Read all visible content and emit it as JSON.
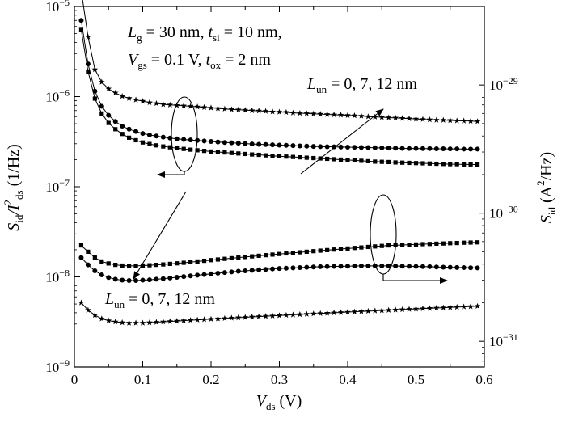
{
  "chart_data": {
    "type": "line",
    "xlabel": {
      "main": "V",
      "sub": "ds",
      "unit": " (V)"
    },
    "ylabel_left": {
      "main": "S",
      "sub1": "id",
      "mid": "/I",
      "sup": "2",
      "sub2": "ds",
      "unit": "(1/Hz)"
    },
    "ylabel_right": {
      "main": "S",
      "sub": "id",
      "unit": "(A",
      "sup": "2",
      "unit2": "/Hz)"
    },
    "x_ticks": [
      "0",
      "0.1",
      "0.2",
      "0.3",
      "0.4",
      "0.5",
      "0.6"
    ],
    "xlim": [
      0,
      0.6
    ],
    "left_ylim": [
      1e-09,
      1e-05
    ],
    "left_y_scale": "log",
    "left_ticks": [
      {
        "value": 1e-09,
        "base": "10",
        "exp": "−9"
      },
      {
        "value": 1e-08,
        "base": "10",
        "exp": "−8"
      },
      {
        "value": 1e-07,
        "base": "10",
        "exp": "−7"
      },
      {
        "value": 1e-06,
        "base": "10",
        "exp": "−6"
      },
      {
        "value": 1e-05,
        "base": "10",
        "exp": "−5"
      }
    ],
    "right_ylim": [
      6.3e-32,
      4.1e-29
    ],
    "right_y_scale": "log",
    "right_ticks": [
      {
        "value": 1e-31,
        "base": "10",
        "exp": "−31"
      },
      {
        "value": 1e-30,
        "base": "10",
        "exp": "−30"
      },
      {
        "value": 1e-29,
        "base": "10",
        "exp": "−29"
      }
    ],
    "x": [
      0.01,
      0.02,
      0.03,
      0.04,
      0.05,
      0.06,
      0.07,
      0.08,
      0.09,
      0.1,
      0.11,
      0.12,
      0.13,
      0.14,
      0.15,
      0.16,
      0.17,
      0.18,
      0.19,
      0.2,
      0.21,
      0.22,
      0.23,
      0.24,
      0.25,
      0.26,
      0.27,
      0.28,
      0.29,
      0.3,
      0.31,
      0.32,
      0.33,
      0.34,
      0.35,
      0.36,
      0.37,
      0.38,
      0.39,
      0.4,
      0.41,
      0.42,
      0.43,
      0.44,
      0.45,
      0.46,
      0.47,
      0.48,
      0.49,
      0.5,
      0.51,
      0.52,
      0.53,
      0.54,
      0.55,
      0.56,
      0.57,
      0.58,
      0.59
    ],
    "series": [
      {
        "group": "normalized",
        "axis": "left",
        "marker": "star",
        "values": [
          1.5e-05,
          4.6e-06,
          2e-06,
          1.45e-06,
          1.22e-06,
          1.1e-06,
          1.01e-06,
          9.6e-07,
          9.2e-07,
          8.9e-07,
          8.6e-07,
          8.4e-07,
          8.2e-07,
          8.1e-07,
          8e-07,
          7.9e-07,
          7.8e-07,
          7.7e-07,
          7.6e-07,
          7.5e-07,
          7.4e-07,
          7.3e-07,
          7.2e-07,
          7.15e-07,
          7.1e-07,
          7e-07,
          6.95e-07,
          6.9e-07,
          6.8e-07,
          6.75e-07,
          6.7e-07,
          6.6e-07,
          6.55e-07,
          6.5e-07,
          6.45e-07,
          6.4e-07,
          6.35e-07,
          6.3e-07,
          6.25e-07,
          6.2e-07,
          6.15e-07,
          6.1e-07,
          6e-07,
          5.95e-07,
          5.9e-07,
          5.85e-07,
          5.8e-07,
          5.75e-07,
          5.7e-07,
          5.65e-07,
          5.6e-07,
          5.55e-07,
          5.5e-07,
          5.48e-07,
          5.45e-07,
          5.4e-07,
          5.38e-07,
          5.35e-07,
          5.3e-07
        ]
      },
      {
        "group": "normalized",
        "axis": "left",
        "marker": "circle",
        "values": [
          7e-06,
          2.3e-06,
          1.15e-06,
          7.8e-07,
          6.2e-07,
          5.3e-07,
          4.7e-07,
          4.35e-07,
          4.1e-07,
          3.9e-07,
          3.75e-07,
          3.65e-07,
          3.55e-07,
          3.47e-07,
          3.4e-07,
          3.35e-07,
          3.3e-07,
          3.26e-07,
          3.22e-07,
          3.18e-07,
          3.14e-07,
          3.1e-07,
          3.07e-07,
          3.04e-07,
          3.01e-07,
          2.98e-07,
          2.96e-07,
          2.94e-07,
          2.92e-07,
          2.9e-07,
          2.88e-07,
          2.86e-07,
          2.84e-07,
          2.82e-07,
          2.8e-07,
          2.79e-07,
          2.78e-07,
          2.77e-07,
          2.76e-07,
          2.75e-07,
          2.74e-07,
          2.73e-07,
          2.72e-07,
          2.71e-07,
          2.7e-07,
          2.69e-07,
          2.68e-07,
          2.67e-07,
          2.66e-07,
          2.66e-07,
          2.65e-07,
          2.65e-07,
          2.64e-07,
          2.64e-07,
          2.63e-07,
          2.63e-07,
          2.62e-07,
          2.62e-07,
          2.62e-07
        ]
      },
      {
        "group": "normalized",
        "axis": "left",
        "marker": "square",
        "values": [
          5.5e-06,
          1.9e-06,
          9.5e-07,
          6.5e-07,
          5.1e-07,
          4.35e-07,
          3.85e-07,
          3.5e-07,
          3.28e-07,
          3.1e-07,
          2.98e-07,
          2.88e-07,
          2.8e-07,
          2.74e-07,
          2.68e-07,
          2.63e-07,
          2.58e-07,
          2.54e-07,
          2.5e-07,
          2.46e-07,
          2.43e-07,
          2.4e-07,
          2.37e-07,
          2.34e-07,
          2.31e-07,
          2.28e-07,
          2.26e-07,
          2.23e-07,
          2.2e-07,
          2.18e-07,
          2.16e-07,
          2.14e-07,
          2.12e-07,
          2.1e-07,
          2.08e-07,
          2.06e-07,
          2.04e-07,
          2.02e-07,
          2e-07,
          1.98e-07,
          1.96e-07,
          1.94e-07,
          1.92e-07,
          1.9e-07,
          1.89e-07,
          1.88e-07,
          1.86e-07,
          1.85e-07,
          1.84e-07,
          1.83e-07,
          1.82e-07,
          1.81e-07,
          1.8e-07,
          1.79e-07,
          1.78e-07,
          1.78e-07,
          1.77e-07,
          1.77e-07,
          1.76e-07
        ]
      },
      {
        "group": "absolute",
        "axis": "right",
        "marker": "square",
        "values": [
          5.6e-31,
          5e-31,
          4.5e-31,
          4.2e-31,
          4.05e-31,
          3.95e-31,
          3.9e-31,
          3.88e-31,
          3.88e-31,
          3.9e-31,
          3.92e-31,
          3.95e-31,
          3.98e-31,
          4.02e-31,
          4.06e-31,
          4.1e-31,
          4.15e-31,
          4.2e-31,
          4.25e-31,
          4.3e-31,
          4.35e-31,
          4.4e-31,
          4.45e-31,
          4.5e-31,
          4.55e-31,
          4.6e-31,
          4.65e-31,
          4.7e-31,
          4.75e-31,
          4.8e-31,
          4.85e-31,
          4.9e-31,
          4.95e-31,
          5e-31,
          5.05e-31,
          5.1e-31,
          5.15e-31,
          5.2e-31,
          5.25e-31,
          5.3e-31,
          5.35e-31,
          5.4e-31,
          5.45e-31,
          5.5e-31,
          5.55e-31,
          5.6e-31,
          5.62e-31,
          5.65e-31,
          5.68e-31,
          5.7e-31,
          5.73e-31,
          5.75e-31,
          5.78e-31,
          5.8e-31,
          5.83e-31,
          5.85e-31,
          5.88e-31,
          5.9e-31,
          5.92e-31
        ]
      },
      {
        "group": "absolute",
        "axis": "right",
        "marker": "circle",
        "values": [
          4.5e-31,
          3.95e-31,
          3.55e-31,
          3.3e-31,
          3.15e-31,
          3.05e-31,
          3e-31,
          2.98e-31,
          2.98e-31,
          3e-31,
          3.02e-31,
          3.05e-31,
          3.08e-31,
          3.12e-31,
          3.16e-31,
          3.2e-31,
          3.24e-31,
          3.28e-31,
          3.32e-31,
          3.36e-31,
          3.4e-31,
          3.44e-31,
          3.48e-31,
          3.52e-31,
          3.55e-31,
          3.58e-31,
          3.61e-31,
          3.64e-31,
          3.67e-31,
          3.7e-31,
          3.72e-31,
          3.74e-31,
          3.76e-31,
          3.78e-31,
          3.8e-31,
          3.82e-31,
          3.83e-31,
          3.84e-31,
          3.85e-31,
          3.86e-31,
          3.87e-31,
          3.88e-31,
          3.88e-31,
          3.88e-31,
          3.88e-31,
          3.88e-31,
          3.87e-31,
          3.86e-31,
          3.85e-31,
          3.84e-31,
          3.83e-31,
          3.82e-31,
          3.8e-31,
          3.79e-31,
          3.78e-31,
          3.77e-31,
          3.76e-31,
          3.75e-31,
          3.74e-31
        ]
      },
      {
        "group": "absolute",
        "axis": "right",
        "marker": "star",
        "values": [
          2e-31,
          1.75e-31,
          1.6e-31,
          1.5e-31,
          1.45e-31,
          1.42e-31,
          1.4e-31,
          1.39e-31,
          1.39e-31,
          1.39e-31,
          1.4e-31,
          1.41e-31,
          1.42e-31,
          1.43e-31,
          1.44e-31,
          1.45e-31,
          1.46e-31,
          1.47e-31,
          1.48e-31,
          1.49e-31,
          1.5e-31,
          1.51e-31,
          1.52e-31,
          1.53e-31,
          1.54e-31,
          1.55e-31,
          1.56e-31,
          1.57e-31,
          1.58e-31,
          1.59e-31,
          1.6e-31,
          1.61e-31,
          1.62e-31,
          1.63e-31,
          1.64e-31,
          1.65e-31,
          1.66e-31,
          1.67e-31,
          1.68e-31,
          1.69e-31,
          1.7e-31,
          1.71e-31,
          1.72e-31,
          1.73e-31,
          1.74e-31,
          1.75e-31,
          1.76e-31,
          1.77e-31,
          1.78e-31,
          1.79e-31,
          1.8e-31,
          1.81e-31,
          1.82e-31,
          1.83e-31,
          1.84e-31,
          1.85e-31,
          1.86e-31,
          1.87e-31,
          1.88e-31
        ]
      }
    ],
    "annotations": {
      "params_line1": {
        "parts": [
          {
            "t": "L",
            "style": "italic"
          },
          {
            "t": "g",
            "style": "sub"
          },
          {
            "t": " = 30 nm, "
          },
          {
            "t": "t",
            "style": "italic"
          },
          {
            "t": "si",
            "style": "sub"
          },
          {
            "t": " = 10 nm,"
          }
        ]
      },
      "params_line2": {
        "parts": [
          {
            "t": "V",
            "style": "italic"
          },
          {
            "t": "gs",
            "style": "sub"
          },
          {
            "t": " = 0.1 V, "
          },
          {
            "t": "t",
            "style": "italic"
          },
          {
            "t": "ox",
            "style": "sub"
          },
          {
            "t": " = 2 nm"
          }
        ]
      },
      "lun_top": {
        "parts": [
          {
            "t": "L",
            "style": "italic"
          },
          {
            "t": "un",
            "style": "sub"
          },
          {
            "t": " = 0, 7, 12 nm"
          }
        ]
      },
      "lun_bottom": {
        "parts": [
          {
            "t": "L",
            "style": "italic"
          },
          {
            "t": "un",
            "style": "sub"
          },
          {
            "t": " = 0, 7, 12 nm"
          }
        ]
      }
    }
  }
}
